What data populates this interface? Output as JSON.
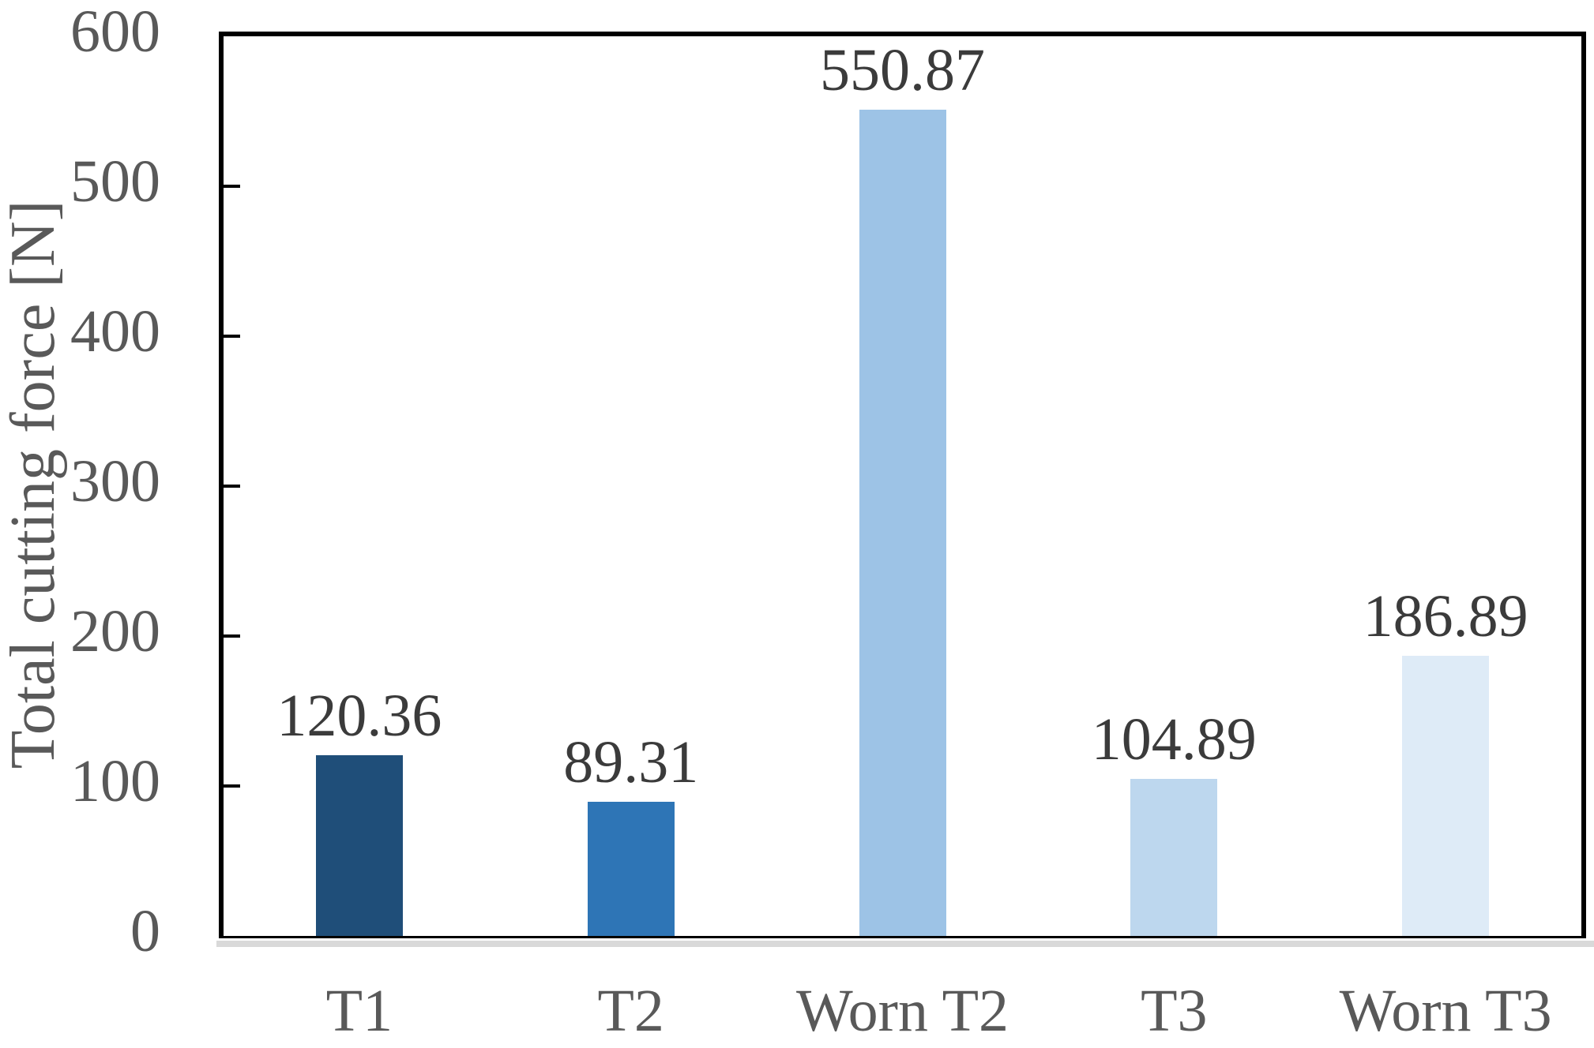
{
  "figure": {
    "background": "#ffffff"
  },
  "chart_data": {
    "type": "bar",
    "title": "",
    "xlabel": "",
    "ylabel": "Total cutting force [N]",
    "categories": [
      "T1",
      "T2",
      "Worn T2",
      "T3",
      "Worn T3"
    ],
    "values": [
      120.36,
      89.31,
      550.87,
      104.89,
      186.89
    ],
    "value_labels": [
      "120.36",
      "89.31",
      "550.87",
      "104.89",
      "186.89"
    ],
    "ylim": [
      0,
      600
    ],
    "yticks": [
      0,
      100,
      200,
      300,
      400,
      500,
      600
    ],
    "grid": false,
    "legend": null,
    "bar_colors": [
      "#1F4E79",
      "#2E75B6",
      "#9DC3E6",
      "#BDD7EE",
      "#DEEBF7"
    ],
    "styles": {
      "axis_border_color": "#000000",
      "baseline_shadow_color": "#D9D9D9",
      "tick_color": "#000000",
      "tick_label_color": "#595959",
      "category_label_color": "#595959",
      "data_label_color": "#3B3B3B",
      "axis_title_color": "#595959"
    }
  }
}
